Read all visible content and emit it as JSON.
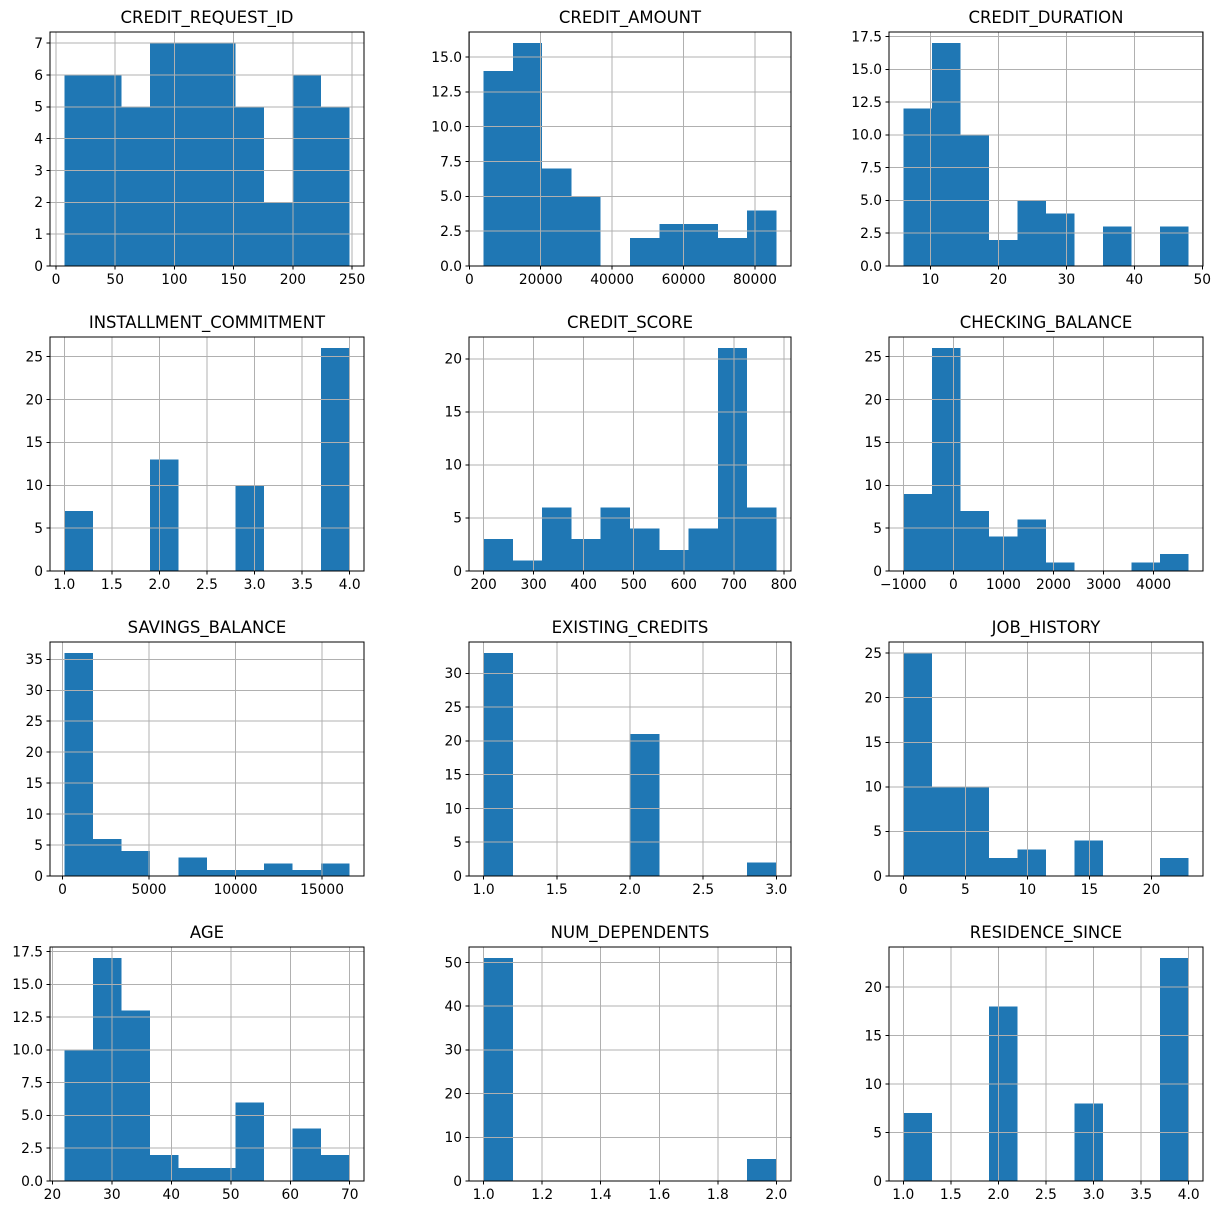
{
  "figure": {
    "background": "#ffffff",
    "bar_color": "#1f77b4",
    "grid_color": "#b0b0b0",
    "spine_color": "#000000",
    "tick_label_color": "#000000",
    "title_color": "#000000",
    "grid": "on",
    "layout": "4 rows x 3 cols"
  },
  "chart_data": [
    {
      "type": "bar",
      "subtype": "histogram",
      "title": "CREDIT_REQUEST_ID",
      "bin_start": 7,
      "bin_end": 248,
      "n_bins": 10,
      "counts": [
        6,
        6,
        5,
        7,
        7,
        7,
        5,
        2,
        6,
        5
      ],
      "xlim": [
        -5.05,
        260.05
      ],
      "ylim": [
        0,
        7.35
      ],
      "xticks": [
        0,
        50,
        100,
        150,
        200,
        250
      ],
      "xtick_labels": [
        "0",
        "50",
        "100",
        "150",
        "200",
        "250"
      ],
      "yticks": [
        0,
        1,
        2,
        3,
        4,
        5,
        6,
        7
      ],
      "ytick_labels": [
        "0",
        "1",
        "2",
        "3",
        "4",
        "5",
        "6",
        "7"
      ]
    },
    {
      "type": "bar",
      "subtype": "histogram",
      "title": "CREDIT_AMOUNT",
      "bin_start": 4000,
      "bin_end": 86000,
      "n_bins": 10,
      "counts": [
        14,
        16,
        7,
        5,
        0,
        2,
        3,
        3,
        2,
        4
      ],
      "xlim": [
        -100,
        90100
      ],
      "ylim": [
        0,
        16.8
      ],
      "xticks": [
        0,
        20000,
        40000,
        60000,
        80000
      ],
      "xtick_labels": [
        "0",
        "20000",
        "40000",
        "60000",
        "80000"
      ],
      "yticks": [
        0,
        2.5,
        5,
        7.5,
        10,
        12.5,
        15
      ],
      "ytick_labels": [
        "0.0",
        "2.5",
        "5.0",
        "7.5",
        "10.0",
        "12.5",
        "15.0"
      ]
    },
    {
      "type": "bar",
      "subtype": "histogram",
      "title": "CREDIT_DURATION",
      "bin_start": 6,
      "bin_end": 48,
      "n_bins": 10,
      "counts": [
        12,
        17,
        10,
        2,
        5,
        4,
        0,
        3,
        0,
        3
      ],
      "xlim": [
        3.9,
        50.1
      ],
      "ylim": [
        0,
        17.85
      ],
      "xticks": [
        10,
        20,
        30,
        40,
        50
      ],
      "xtick_labels": [
        "10",
        "20",
        "30",
        "40",
        "50"
      ],
      "yticks": [
        0,
        2.5,
        5,
        7.5,
        10,
        12.5,
        15,
        17.5
      ],
      "ytick_labels": [
        "0.0",
        "2.5",
        "5.0",
        "7.5",
        "10.0",
        "12.5",
        "15.0",
        "17.5"
      ]
    },
    {
      "type": "bar",
      "subtype": "histogram",
      "title": "INSTALLMENT_COMMITMENT",
      "bin_start": 1,
      "bin_end": 4,
      "n_bins": 10,
      "counts": [
        7,
        0,
        0,
        13,
        0,
        0,
        10,
        0,
        0,
        26
      ],
      "xlim": [
        0.85,
        4.15
      ],
      "ylim": [
        0,
        27.3
      ],
      "xticks": [
        1,
        1.5,
        2,
        2.5,
        3,
        3.5,
        4
      ],
      "xtick_labels": [
        "1.0",
        "1.5",
        "2.0",
        "2.5",
        "3.0",
        "3.5",
        "4.0"
      ],
      "yticks": [
        0,
        5,
        10,
        15,
        20,
        25
      ],
      "ytick_labels": [
        "0",
        "5",
        "10",
        "15",
        "20",
        "25"
      ]
    },
    {
      "type": "bar",
      "subtype": "histogram",
      "title": "CREDIT_SCORE",
      "bin_start": 200,
      "bin_end": 785,
      "n_bins": 10,
      "counts": [
        3,
        1,
        6,
        3,
        6,
        4,
        2,
        4,
        21,
        6
      ],
      "xlim": [
        170.75,
        814.25
      ],
      "ylim": [
        0,
        22.05
      ],
      "xticks": [
        200,
        300,
        400,
        500,
        600,
        700,
        800
      ],
      "xtick_labels": [
        "200",
        "300",
        "400",
        "500",
        "600",
        "700",
        "800"
      ],
      "yticks": [
        0,
        5,
        10,
        15,
        20
      ],
      "ytick_labels": [
        "0",
        "5",
        "10",
        "15",
        "20"
      ]
    },
    {
      "type": "bar",
      "subtype": "histogram",
      "title": "CHECKING_BALANCE",
      "bin_start": -1000,
      "bin_end": 4700,
      "n_bins": 10,
      "counts": [
        9,
        26,
        7,
        4,
        6,
        1,
        0,
        0,
        1,
        2
      ],
      "xlim": [
        -1285,
        4985
      ],
      "ylim": [
        0,
        27.3
      ],
      "xticks": [
        -1000,
        0,
        1000,
        2000,
        3000,
        4000
      ],
      "xtick_labels": [
        "−1000",
        "0",
        "1000",
        "2000",
        "3000",
        "4000"
      ],
      "yticks": [
        0,
        5,
        10,
        15,
        20,
        25
      ],
      "ytick_labels": [
        "0",
        "5",
        "10",
        "15",
        "20",
        "25"
      ]
    },
    {
      "type": "bar",
      "subtype": "histogram",
      "title": "SAVINGS_BALANCE",
      "bin_start": 100,
      "bin_end": 16600,
      "n_bins": 10,
      "counts": [
        36,
        6,
        4,
        0,
        3,
        1,
        1,
        2,
        1,
        2
      ],
      "xlim": [
        -725,
        17425
      ],
      "ylim": [
        0,
        37.8
      ],
      "xticks": [
        0,
        5000,
        10000,
        15000
      ],
      "xtick_labels": [
        "0",
        "5000",
        "10000",
        "15000"
      ],
      "yticks": [
        0,
        5,
        10,
        15,
        20,
        25,
        30,
        35
      ],
      "ytick_labels": [
        "0",
        "5",
        "10",
        "15",
        "20",
        "25",
        "30",
        "35"
      ]
    },
    {
      "type": "bar",
      "subtype": "histogram",
      "title": "EXISTING_CREDITS",
      "bin_start": 1,
      "bin_end": 3,
      "n_bins": 10,
      "counts": [
        33,
        0,
        0,
        0,
        0,
        21,
        0,
        0,
        0,
        2
      ],
      "xlim": [
        0.9,
        3.1
      ],
      "ylim": [
        0,
        34.65
      ],
      "xticks": [
        1,
        1.5,
        2,
        2.5,
        3
      ],
      "xtick_labels": [
        "1.0",
        "1.5",
        "2.0",
        "2.5",
        "3.0"
      ],
      "yticks": [
        0,
        5,
        10,
        15,
        20,
        25,
        30
      ],
      "ytick_labels": [
        "0",
        "5",
        "10",
        "15",
        "20",
        "25",
        "30"
      ]
    },
    {
      "type": "bar",
      "subtype": "histogram",
      "title": "JOB_HISTORY",
      "bin_start": 0,
      "bin_end": 23,
      "n_bins": 10,
      "counts": [
        25,
        10,
        10,
        2,
        3,
        0,
        4,
        0,
        0,
        2
      ],
      "xlim": [
        -1.15,
        24.15
      ],
      "ylim": [
        0,
        26.25
      ],
      "xticks": [
        0,
        5,
        10,
        15,
        20
      ],
      "xtick_labels": [
        "0",
        "5",
        "10",
        "15",
        "20"
      ],
      "yticks": [
        0,
        5,
        10,
        15,
        20,
        25
      ],
      "ytick_labels": [
        "0",
        "5",
        "10",
        "15",
        "20",
        "25"
      ]
    },
    {
      "type": "bar",
      "subtype": "histogram",
      "title": "AGE",
      "bin_start": 22,
      "bin_end": 70,
      "n_bins": 10,
      "counts": [
        10,
        17,
        13,
        2,
        1,
        1,
        6,
        0,
        4,
        2
      ],
      "xlim": [
        19.6,
        72.4
      ],
      "ylim": [
        0,
        17.85
      ],
      "xticks": [
        20,
        30,
        40,
        50,
        60,
        70
      ],
      "xtick_labels": [
        "20",
        "30",
        "40",
        "50",
        "60",
        "70"
      ],
      "yticks": [
        0,
        2.5,
        5,
        7.5,
        10,
        12.5,
        15,
        17.5
      ],
      "ytick_labels": [
        "0.0",
        "2.5",
        "5.0",
        "7.5",
        "10.0",
        "12.5",
        "15.0",
        "17.5"
      ]
    },
    {
      "type": "bar",
      "subtype": "histogram",
      "title": "NUM_DEPENDENTS",
      "bin_start": 1,
      "bin_end": 2,
      "n_bins": 10,
      "counts": [
        51,
        0,
        0,
        0,
        0,
        0,
        0,
        0,
        0,
        5
      ],
      "xlim": [
        0.95,
        2.05
      ],
      "ylim": [
        0,
        53.55
      ],
      "xticks": [
        1,
        1.2,
        1.4,
        1.6,
        1.8,
        2
      ],
      "xtick_labels": [
        "1.0",
        "1.2",
        "1.4",
        "1.6",
        "1.8",
        "2.0"
      ],
      "yticks": [
        0,
        10,
        20,
        30,
        40,
        50
      ],
      "ytick_labels": [
        "0",
        "10",
        "20",
        "30",
        "40",
        "50"
      ]
    },
    {
      "type": "bar",
      "subtype": "histogram",
      "title": "RESIDENCE_SINCE",
      "bin_start": 1,
      "bin_end": 4,
      "n_bins": 10,
      "counts": [
        7,
        0,
        0,
        18,
        0,
        0,
        8,
        0,
        0,
        23
      ],
      "xlim": [
        0.85,
        4.15
      ],
      "ylim": [
        0,
        24.15
      ],
      "xticks": [
        1,
        1.5,
        2,
        2.5,
        3,
        3.5,
        4
      ],
      "xtick_labels": [
        "1.0",
        "1.5",
        "2.0",
        "2.5",
        "3.0",
        "3.5",
        "4.0"
      ],
      "yticks": [
        0,
        5,
        10,
        15,
        20
      ],
      "ytick_labels": [
        "0",
        "5",
        "10",
        "15",
        "20"
      ]
    }
  ]
}
